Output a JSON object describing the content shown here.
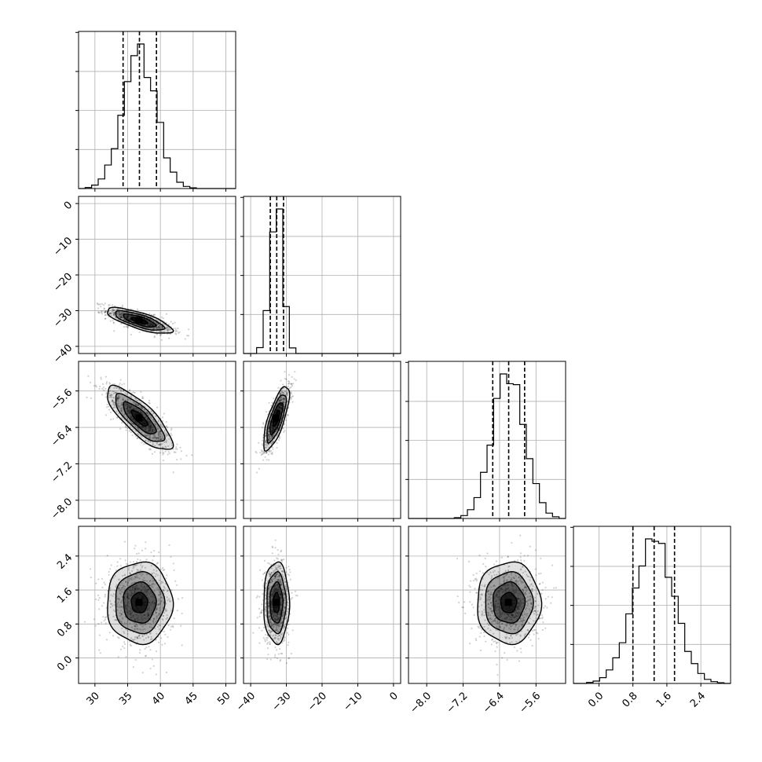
{
  "chart_data": {
    "type": "corner",
    "grid": true,
    "parameters": [
      {
        "range": [
          27.5,
          51.5
        ],
        "ticks": [
          30,
          35,
          40,
          45,
          50
        ],
        "tick_labels": [
          "30",
          "35",
          "40",
          "45",
          "50"
        ],
        "quantiles": [
          34.3,
          36.8,
          39.4
        ],
        "mean": 36.8,
        "sd": 2.5
      },
      {
        "range": [
          -42,
          2
        ],
        "ticks": [
          -40,
          -30,
          -20,
          -10,
          0
        ],
        "tick_labels": [
          "−40",
          "−30",
          "−20",
          "−10",
          "0"
        ],
        "quantiles": [
          -34.5,
          -32.7,
          -30.8
        ],
        "mean": -32.8,
        "sd": 1.8
      },
      {
        "range": [
          -8.4,
          -4.95
        ],
        "ticks": [
          -8.0,
          -7.2,
          -6.4,
          -5.6
        ],
        "tick_labels": [
          "−8.0",
          "−7.2",
          "−6.4",
          "−5.6"
        ],
        "quantiles": [
          -6.55,
          -6.2,
          -5.85
        ],
        "mean": -6.2,
        "sd": 0.35
      },
      {
        "range": [
          -0.6,
          3.1
        ],
        "ticks": [
          0.0,
          0.8,
          1.6,
          2.4
        ],
        "tick_labels": [
          "0.0",
          "0.8",
          "1.6",
          "2.4"
        ],
        "quantiles": [
          0.8,
          1.3,
          1.78
        ],
        "mean": 1.3,
        "sd": 0.48
      }
    ],
    "pairs": [
      {
        "x": 0,
        "y": 1,
        "center": [
          36.8,
          -32.8
        ],
        "sd": [
          2.5,
          1.8
        ],
        "corr": -0.75
      },
      {
        "x": 0,
        "y": 2,
        "center": [
          36.8,
          -6.2
        ],
        "sd": [
          2.5,
          0.35
        ],
        "corr": -0.8
      },
      {
        "x": 1,
        "y": 2,
        "center": [
          -32.8,
          -6.2
        ],
        "sd": [
          1.8,
          0.35
        ],
        "corr": 0.75
      },
      {
        "x": 0,
        "y": 3,
        "center": [
          36.8,
          1.3
        ],
        "sd": [
          2.5,
          0.48
        ],
        "corr": 0.0
      },
      {
        "x": 1,
        "y": 3,
        "center": [
          -32.8,
          1.3
        ],
        "sd": [
          1.8,
          0.48
        ],
        "corr": 0.0
      },
      {
        "x": 2,
        "y": 3,
        "center": [
          -6.2,
          1.3
        ],
        "sd": [
          0.35,
          0.48
        ],
        "corr": 0.0
      }
    ],
    "contour_levels_sigma": [
      0.5,
      1.0,
      1.5,
      2.0
    ],
    "colors": {
      "line": "#000000",
      "grid": "#b0b0b0",
      "density": "#000000"
    }
  }
}
